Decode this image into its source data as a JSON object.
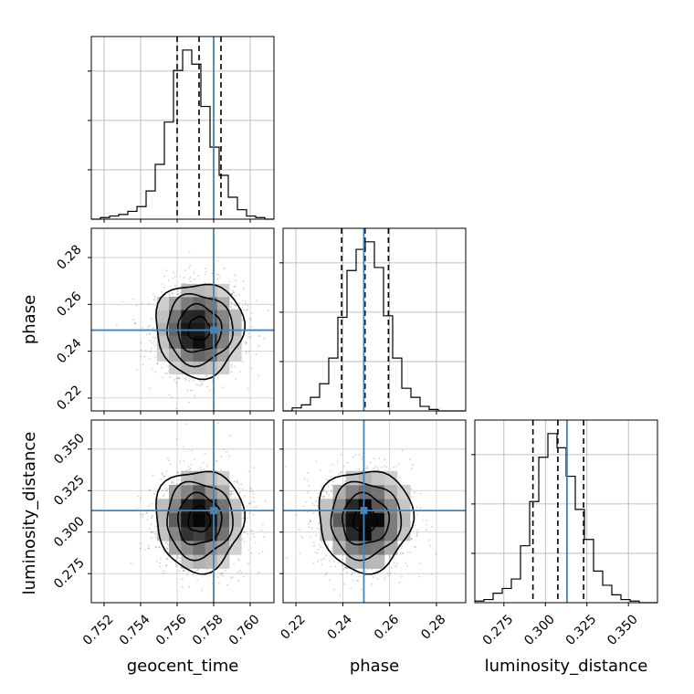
{
  "chart_data": {
    "type": "corner",
    "parameters": [
      "geocent_time",
      "phase",
      "luminosity_distance"
    ],
    "truths": {
      "geocent_time": 0.758,
      "phase": 0.249,
      "luminosity_distance": 0.313
    },
    "ranges": {
      "geocent_time": [
        0.7513,
        0.7613
      ],
      "phase": [
        0.2145,
        0.2925
      ],
      "luminosity_distance": [
        0.2575,
        0.3675
      ]
    },
    "ticks": {
      "geocent_time": {
        "values": [
          0.752,
          0.754,
          0.756,
          0.758,
          0.76
        ],
        "labels": [
          "0.752",
          "0.754",
          "0.756",
          "0.758",
          "0.760"
        ]
      },
      "phase": {
        "values": [
          0.22,
          0.24,
          0.26,
          0.28
        ],
        "labels": [
          "0.22",
          "0.24",
          "0.26",
          "0.28"
        ]
      },
      "luminosity_distance": {
        "values": [
          0.275,
          0.3,
          0.325,
          0.35
        ],
        "labels": [
          "0.275",
          "0.300",
          "0.325",
          "0.350"
        ]
      }
    },
    "quantiles": {
      "geocent_time": [
        0.756,
        0.7572,
        0.7584
      ],
      "phase": [
        0.2395,
        0.2495,
        0.2595
      ],
      "luminosity_distance": [
        0.2925,
        0.3075,
        0.323
      ]
    },
    "histograms": {
      "geocent_time": {
        "edges": [
          0.7513,
          0.7518,
          0.7523,
          0.7528,
          0.7533,
          0.7538,
          0.7543,
          0.7548,
          0.7553,
          0.7558,
          0.7563,
          0.7568,
          0.7573,
          0.7578,
          0.7583,
          0.7588,
          0.7593,
          0.7598,
          0.7603,
          0.7608,
          0.7613
        ],
        "counts": [
          0,
          1,
          2,
          3,
          5,
          8,
          18,
          35,
          62,
          95,
          108,
          99,
          72,
          46,
          28,
          14,
          6,
          2,
          1,
          0
        ]
      },
      "phase": {
        "edges": [
          0.2145,
          0.2184,
          0.2223,
          0.2262,
          0.2301,
          0.234,
          0.2379,
          0.2418,
          0.2457,
          0.2496,
          0.2535,
          0.2574,
          0.2613,
          0.2652,
          0.2691,
          0.273,
          0.2769,
          0.2808,
          0.2847,
          0.2886,
          0.2925
        ],
        "counts": [
          0,
          2,
          4,
          9,
          18,
          35,
          62,
          93,
          107,
          112,
          95,
          63,
          35,
          15,
          9,
          3,
          1,
          0,
          0,
          0
        ]
      },
      "luminosity_distance": {
        "edges": [
          0.2575,
          0.263,
          0.2685,
          0.274,
          0.2795,
          0.285,
          0.2905,
          0.296,
          0.3015,
          0.307,
          0.3125,
          0.318,
          0.3235,
          0.329,
          0.3345,
          0.34,
          0.3455,
          0.351,
          0.3565,
          0.362,
          0.3675
        ],
        "counts": [
          1,
          2,
          6,
          9,
          15,
          36,
          64,
          92,
          107,
          98,
          80,
          59,
          40,
          20,
          11,
          5,
          2,
          1,
          0,
          0
        ]
      }
    },
    "axis_labels": {
      "x": [
        "geocent_time",
        "phase",
        "luminosity_distance"
      ],
      "y": [
        "phase",
        "luminosity_distance"
      ]
    },
    "truth_color": "#4682b4",
    "line_color": "#000000",
    "grid": true
  }
}
